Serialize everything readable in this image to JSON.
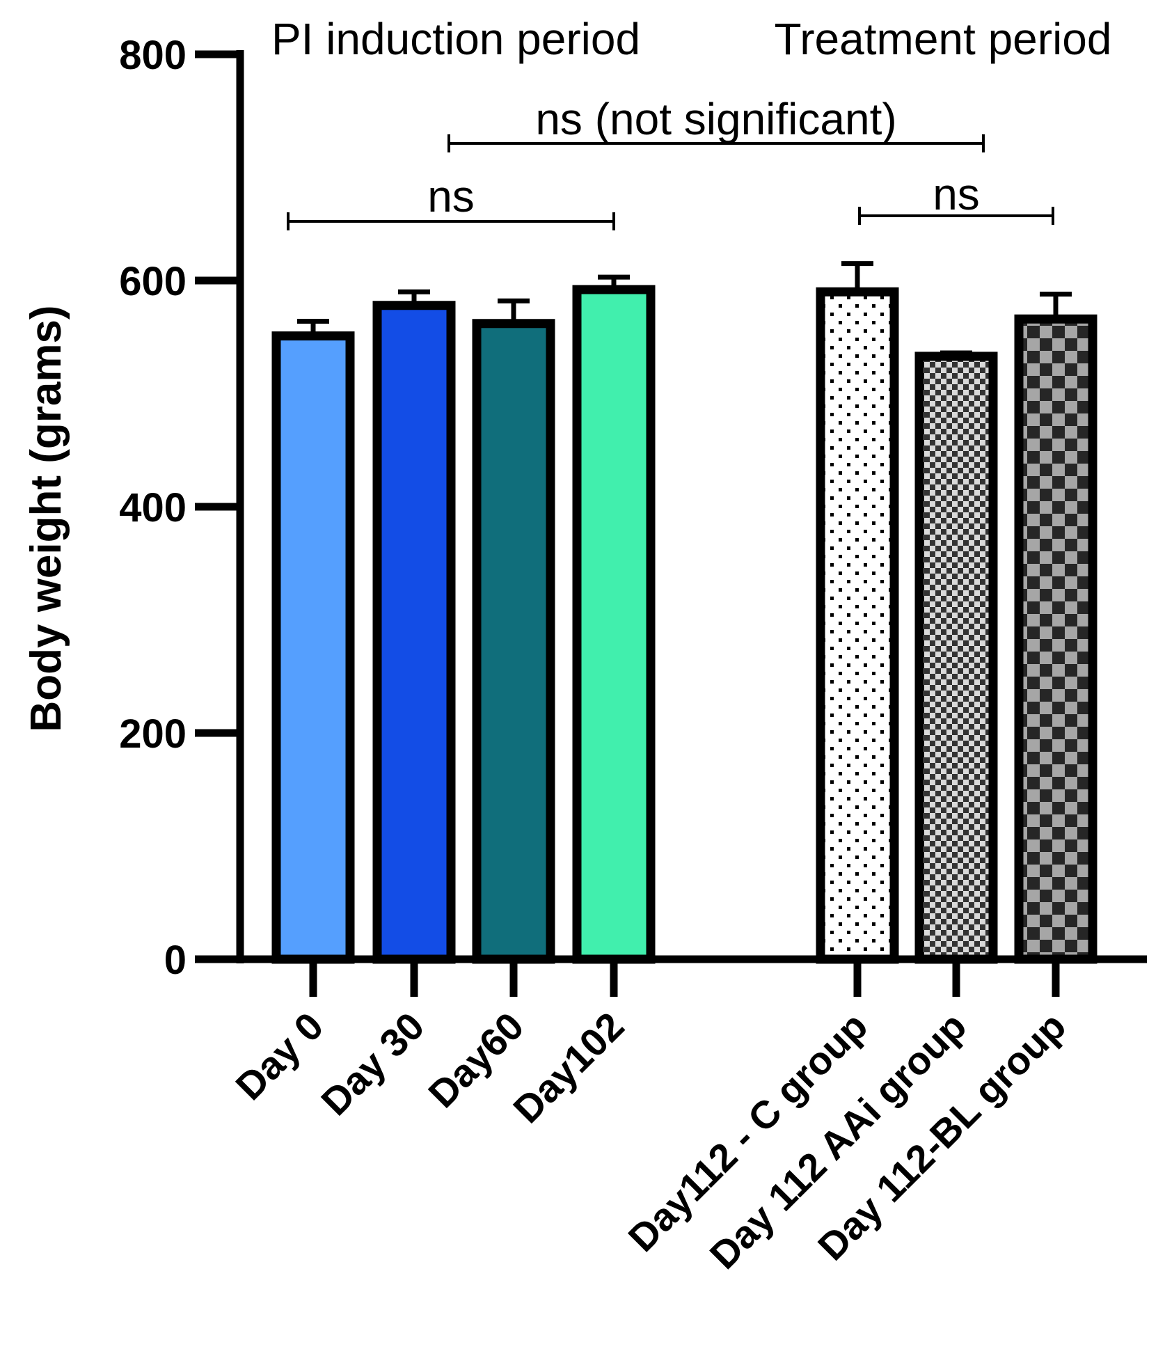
{
  "chart_data": {
    "type": "bar",
    "title": "",
    "xlabel": "",
    "ylabel": "Body weight (grams)",
    "ylim": [
      0,
      800
    ],
    "yticks": [
      0,
      200,
      400,
      600,
      800
    ],
    "grid": false,
    "period_labels": {
      "induction": "PI induction period",
      "treatment": "Treatment period"
    },
    "categories": [
      "Day 0",
      "Day 30",
      "Day60",
      "Day102",
      "Day112 - C group",
      "Day 112 AAi group",
      "Day 112-BL group"
    ],
    "values": [
      551,
      578,
      562,
      592,
      590,
      533,
      566
    ],
    "errors": [
      13,
      12,
      20,
      11,
      25,
      3,
      22
    ],
    "fills": [
      {
        "pattern": "solid",
        "color": "#559ffe"
      },
      {
        "pattern": "solid",
        "color": "#134de6"
      },
      {
        "pattern": "solid",
        "color": "#106e7b"
      },
      {
        "pattern": "solid",
        "color": "#41efad"
      },
      {
        "pattern": "dots",
        "color": "#000000"
      },
      {
        "pattern": "checker-small",
        "color": "#000000"
      },
      {
        "pattern": "checker-large",
        "color": "#000000"
      }
    ],
    "significance": [
      {
        "label": "ns",
        "from": 0,
        "to": 3
      },
      {
        "label": "ns (not significant)",
        "from": 1.5,
        "to": 6.4
      },
      {
        "label": "ns",
        "from": 5.5,
        "to": 7.2
      }
    ]
  }
}
